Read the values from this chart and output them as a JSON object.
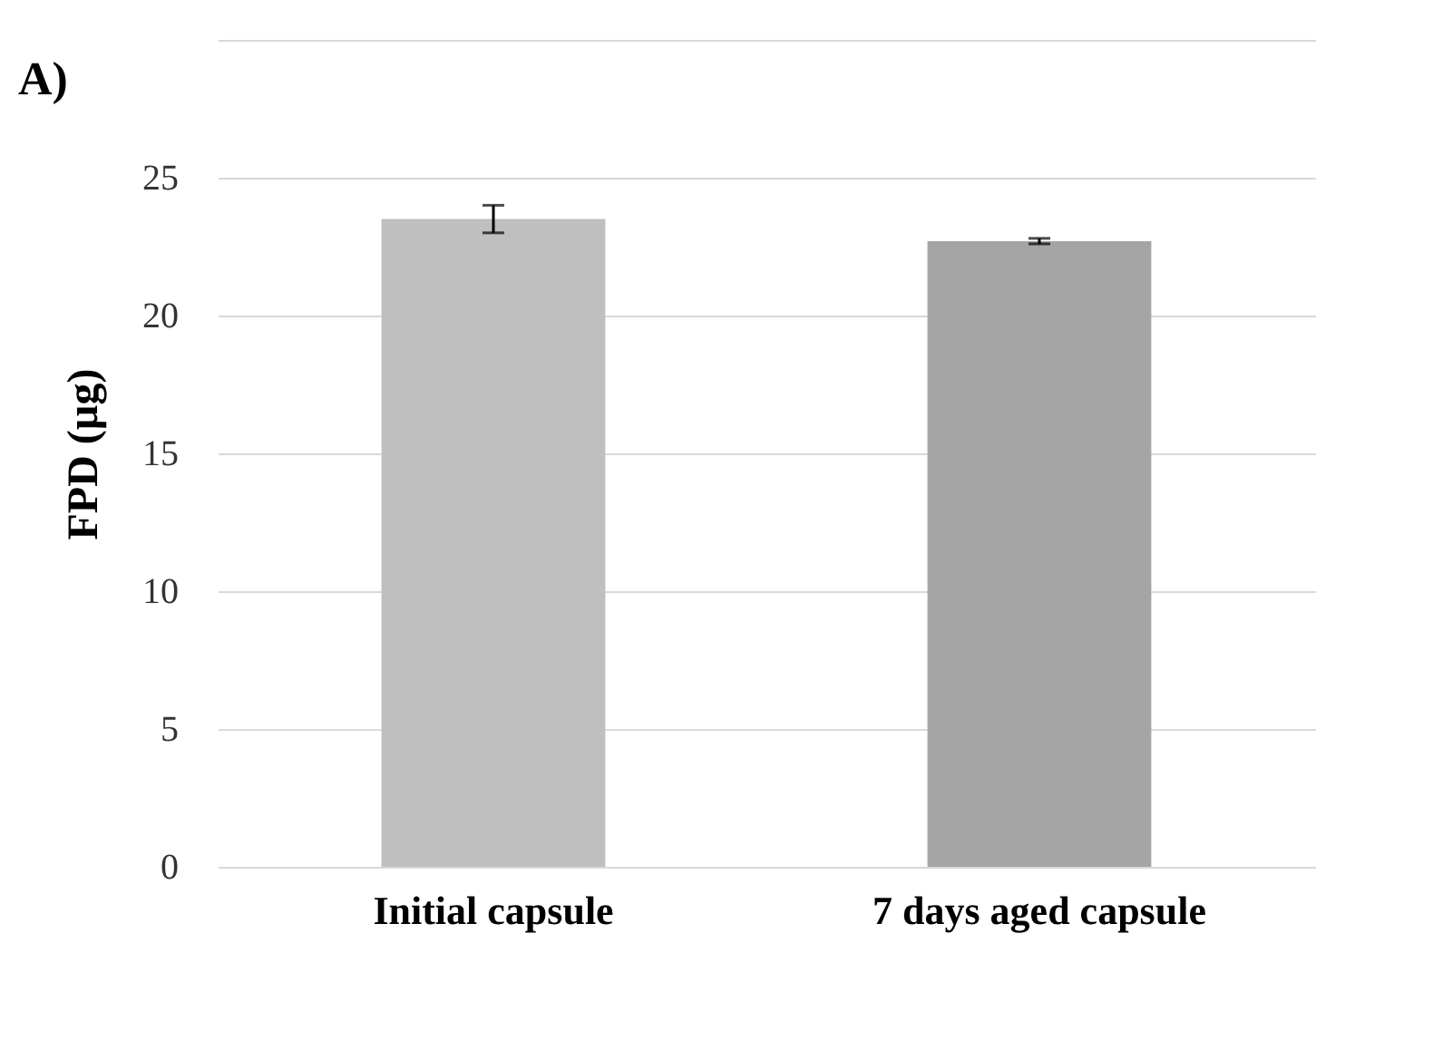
{
  "chart_data": {
    "type": "bar",
    "categories": [
      "Initial capsule",
      "7 days aged capsule"
    ],
    "values": [
      23.5,
      22.7
    ],
    "errors": [
      0.5,
      0.1
    ],
    "colors": [
      "#bfbfbf",
      "#a5a5a5"
    ],
    "ylabel": "FPD (µg)",
    "ylim": [
      0,
      30
    ],
    "yticks": [
      0,
      5,
      10,
      15,
      20,
      25,
      {
        "value": 30,
        "label": null
      }
    ],
    "grid": "y",
    "annotations": [
      "A)"
    ]
  }
}
